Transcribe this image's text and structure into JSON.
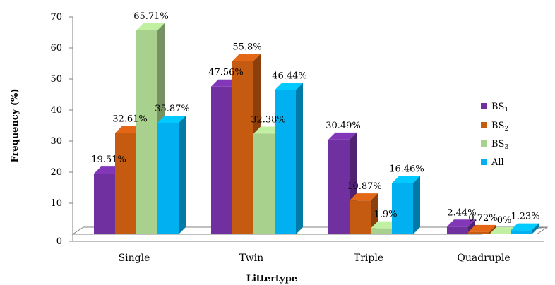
{
  "chart_data": {
    "type": "bar",
    "title": "",
    "xlabel": "Littertype",
    "ylabel": "Frequency (%)",
    "ylim": [
      0,
      70
    ],
    "yticks": [
      0,
      10,
      20,
      30,
      40,
      50,
      60,
      70
    ],
    "categories": [
      "Single",
      "Twin",
      "Triple",
      "Quadruple"
    ],
    "series": [
      {
        "name": "BS1",
        "color": "#7030A0",
        "values": [
          19.51,
          47.56,
          30.49,
          2.44
        ],
        "labels": [
          "19.51%",
          "47.56%",
          "30.49%",
          "2.44%"
        ]
      },
      {
        "name": "BS2",
        "color": "#C55A11",
        "values": [
          32.61,
          55.8,
          10.87,
          0.72
        ],
        "labels": [
          "32.61%",
          "55.8%",
          "10.87%",
          "0.72%"
        ]
      },
      {
        "name": "BS3",
        "color": "#A9D18E",
        "values": [
          65.71,
          32.38,
          1.9,
          0
        ],
        "labels": [
          "65.71%",
          "32.38%",
          "1.9%",
          "0%"
        ]
      },
      {
        "name": "All",
        "color": "#00B0F0",
        "values": [
          35.87,
          46.44,
          16.46,
          1.23
        ],
        "labels": [
          "35.87%",
          "46.44%",
          "16.46%",
          "1.23%"
        ]
      }
    ],
    "legend": {
      "position": "right",
      "entries": [
        {
          "base": "BS",
          "sub": "1"
        },
        {
          "base": "BS",
          "sub": "2"
        },
        {
          "base": "BS",
          "sub": "3"
        },
        {
          "base": "All",
          "sub": ""
        }
      ]
    },
    "grid": false,
    "style": "3d-columns"
  }
}
